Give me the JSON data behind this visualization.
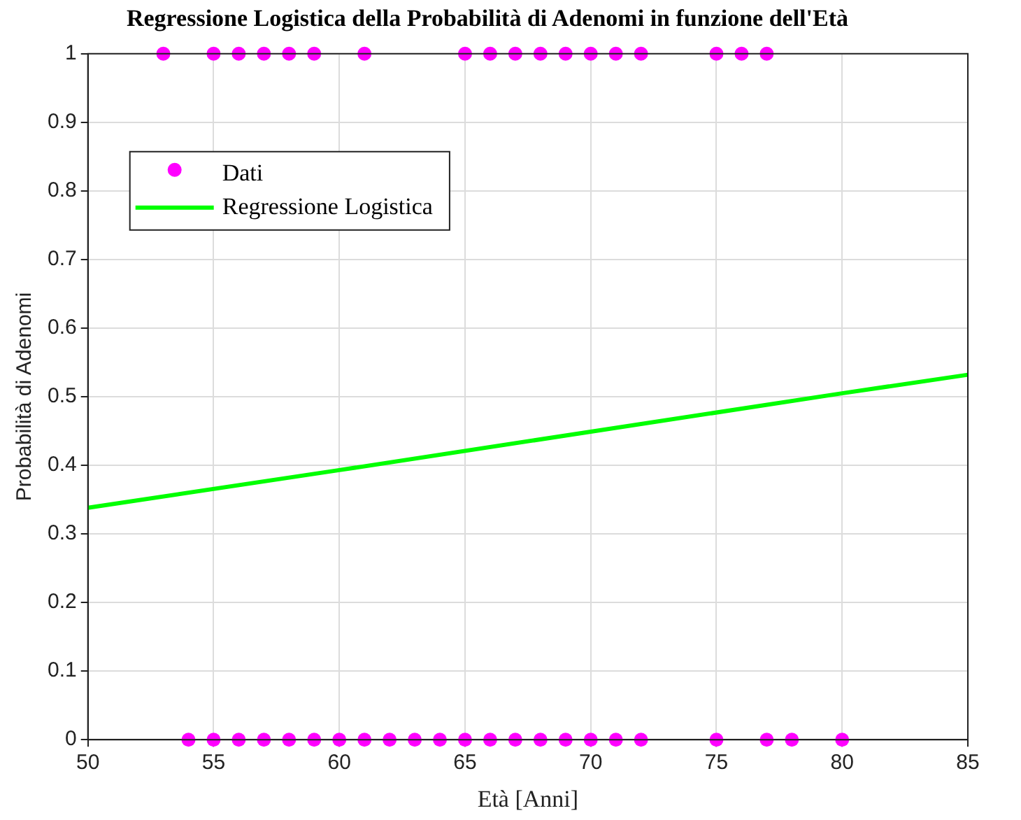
{
  "chart_data": {
    "type": "scatter",
    "title": "Regressione Logistica della Probabilità di Adenomi in funzione dell'Età",
    "xlabel": "Età [Anni]",
    "ylabel": "Probabilità di Adenomi",
    "series": [
      {
        "name": "Dati",
        "type": "scatter",
        "color": "#ff00ff",
        "marker": "circle",
        "x": [
          53,
          55,
          56,
          57,
          58,
          59,
          61,
          65,
          66,
          67,
          68,
          69,
          70,
          71,
          72,
          75,
          76,
          77,
          54,
          55,
          56,
          57,
          58,
          59,
          60,
          61,
          62,
          63,
          64,
          65,
          66,
          67,
          68,
          69,
          70,
          71,
          72,
          75,
          77,
          78,
          80
        ],
        "values": [
          1,
          1,
          1,
          1,
          1,
          1,
          1,
          1,
          1,
          1,
          1,
          1,
          1,
          1,
          1,
          1,
          1,
          1,
          0,
          0,
          0,
          0,
          0,
          0,
          0,
          0,
          0,
          0,
          0,
          0,
          0,
          0,
          0,
          0,
          0,
          0,
          0,
          0,
          0,
          0,
          0
        ]
      },
      {
        "name": "Regressione Logistica",
        "type": "line",
        "color": "#00ff00",
        "marker": "none",
        "line_style": "solid",
        "x": [
          50,
          60,
          70,
          80,
          85
        ],
        "values": [
          0.338,
          0.393,
          0.449,
          0.505,
          0.532
        ]
      }
    ],
    "xlim": [
      50,
      85
    ],
    "xticks": [
      50,
      55,
      60,
      65,
      70,
      75,
      80,
      85
    ],
    "ylim": [
      0,
      1
    ],
    "yticks": [
      0,
      0.1,
      0.2,
      0.3,
      0.4,
      0.5,
      0.6,
      0.7,
      0.8,
      0.9,
      1
    ],
    "grid": true,
    "legend": "top left"
  }
}
